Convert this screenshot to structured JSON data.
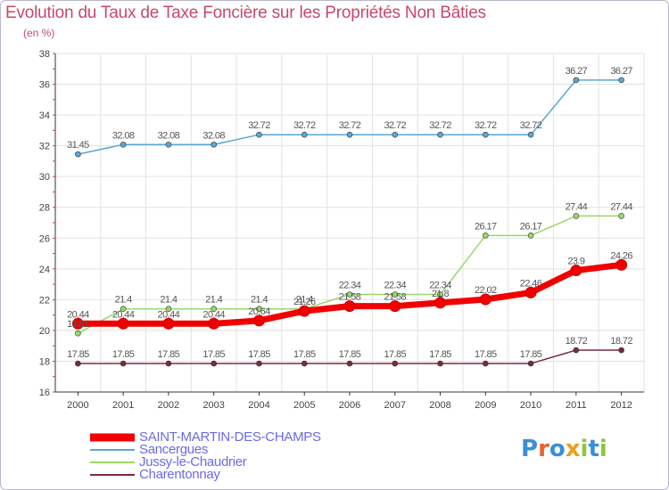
{
  "title": "Evolution du Taux de Taxe Foncière sur les Propriétés Non Bâties",
  "subtitle": "(en %)",
  "logo": {
    "text": "Proxiti",
    "colors": [
      "#3a8fd8",
      "#e8642a",
      "#3a8fd8",
      "#e8a020",
      "#8cc63e",
      "#3a8fd8",
      "#8cc63e"
    ]
  },
  "chart_data": {
    "type": "line",
    "title": "Evolution du Taux de Taxe Foncière sur les Propriétés Non Bâties",
    "ylabel": "(en %)",
    "xlabel": "",
    "x": [
      "2000",
      "2001",
      "2002",
      "2003",
      "2004",
      "2005",
      "2006",
      "2007",
      "2008",
      "2009",
      "2010",
      "2011",
      "2012"
    ],
    "ylim": [
      16,
      38
    ],
    "yticks": [
      "16",
      "18",
      "20",
      "22",
      "24",
      "26",
      "28",
      "30",
      "32",
      "34",
      "36",
      "38"
    ],
    "grid": true,
    "legend": "bottom-left",
    "series": [
      {
        "name": "SAINT-MARTIN-DES-CHAMPS",
        "color": "#f00000",
        "values": [
          20.44,
          20.44,
          20.44,
          20.44,
          20.64,
          21.26,
          21.58,
          21.58,
          21.8,
          22.02,
          22.46,
          23.9,
          24.26
        ],
        "labels": [
          "20.44",
          "20.44",
          "20.44",
          "20.44",
          "20.64",
          "21.26",
          "21.58",
          "21.58",
          "21.8",
          "22.02",
          "22.46",
          "23.9",
          "24.26"
        ]
      },
      {
        "name": "Sancergues",
        "color": "#5aa6d6",
        "values": [
          31.45,
          32.08,
          32.08,
          32.08,
          32.72,
          32.72,
          32.72,
          32.72,
          32.72,
          32.72,
          32.72,
          36.27,
          36.27
        ],
        "labels": [
          "31.45",
          "32.08",
          "32.08",
          "32.08",
          "32.72",
          "32.72",
          "32.72",
          "32.72",
          "32.72",
          "32.72",
          "32.72",
          "36.27",
          "36.27"
        ]
      },
      {
        "name": "Jussy-le-Chaudrier",
        "color": "#98d86a",
        "values": [
          19.81,
          21.4,
          21.4,
          21.4,
          21.4,
          21.4,
          22.34,
          22.34,
          22.34,
          26.17,
          26.17,
          27.44,
          27.44
        ],
        "labels": [
          "19.81",
          "21.4",
          "21.4",
          "21.4",
          "21.4",
          "21.4",
          "22.34",
          "22.34",
          "22.34",
          "26.17",
          "26.17",
          "27.44",
          "27.44"
        ]
      },
      {
        "name": "Charentonnay",
        "color": "#7a2c3a",
        "values": [
          17.85,
          17.85,
          17.85,
          17.85,
          17.85,
          17.85,
          17.85,
          17.85,
          17.85,
          17.85,
          17.85,
          18.72,
          18.72
        ],
        "labels": [
          "17.85",
          "17.85",
          "17.85",
          "17.85",
          "17.85",
          "17.85",
          "17.85",
          "17.85",
          "17.85",
          "17.85",
          "17.85",
          "18.72",
          "18.72"
        ]
      }
    ]
  }
}
